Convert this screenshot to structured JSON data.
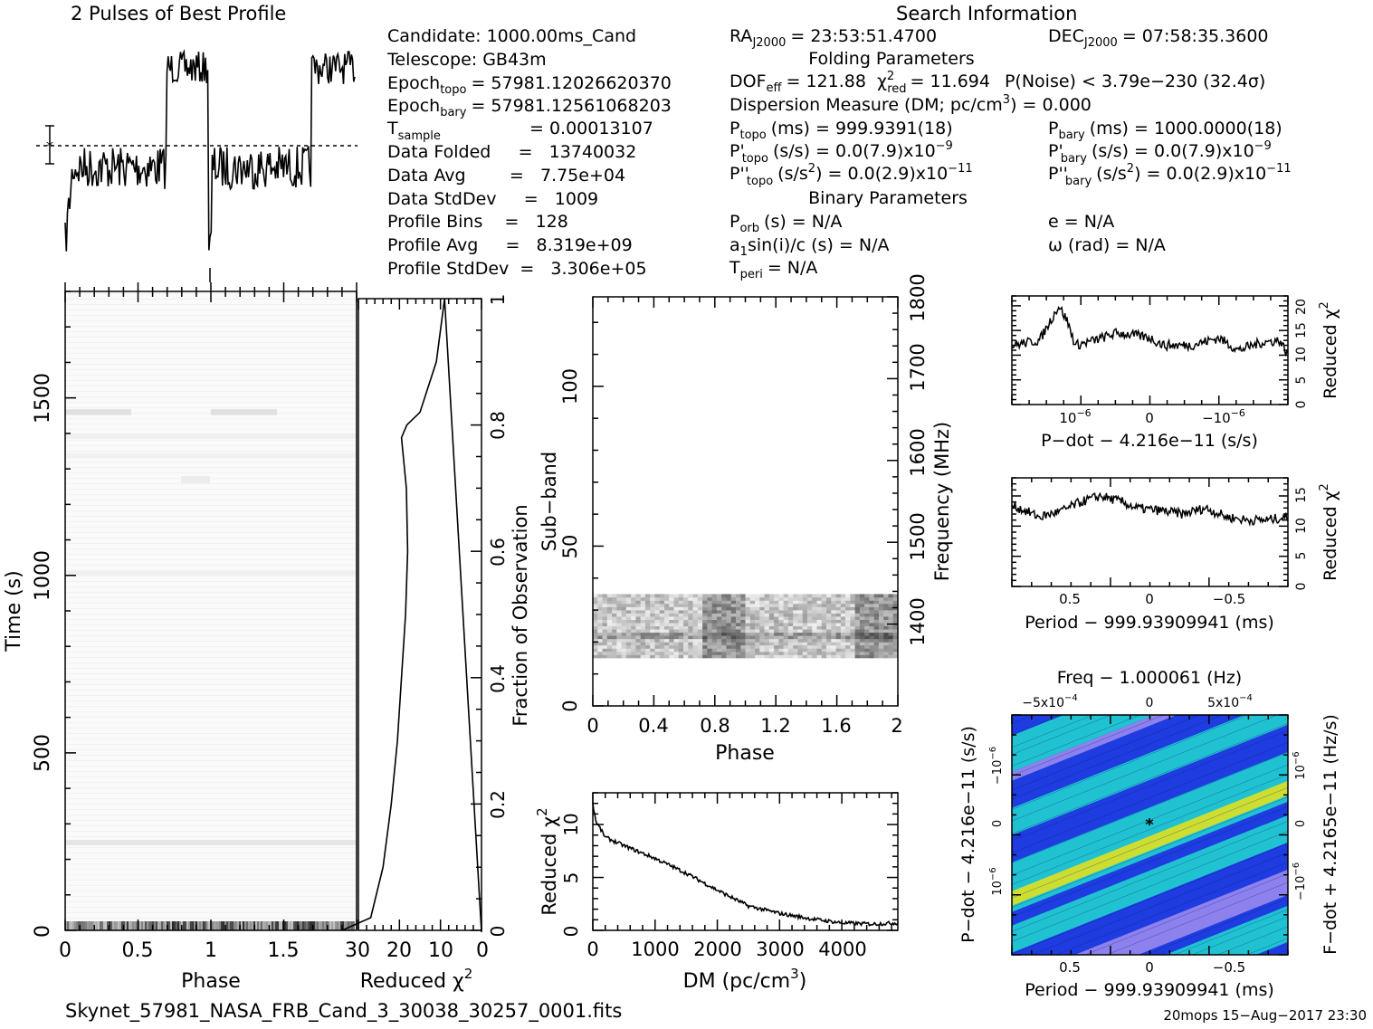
{
  "profile_title": "2 Pulses of Best Profile",
  "search_title": "Search Information",
  "info": {
    "candidate": "Candidate:  1000.00ms_Cand",
    "telescope": "Telescope:  GB43m",
    "epoch_topo_label": "Epoch",
    "epoch_topo_sub": "topo",
    "epoch_topo_value": "= 57981.12026620370",
    "epoch_bary_label": "Epoch",
    "epoch_bary_sub": "bary",
    "epoch_bary_value": "= 57981.12561068203",
    "tsample_label": "T",
    "tsample_sub": "sample",
    "tsample_value": "=   0.00013107",
    "data_folded": "Data Folded     =   13740032",
    "data_avg": "Data Avg        =   7.75e+04",
    "data_stddev": "Data StdDev     =   1009",
    "profile_bins": "Profile Bins    =   128",
    "profile_avg": "Profile Avg     =   8.319e+09",
    "profile_stddev": "Profile StdDev  =   3.306e+05"
  },
  "search": {
    "ra_label": "RA",
    "ra_sub": "J2000",
    "ra_value": "= 23:53:51.4700",
    "dec_label": "DEC",
    "dec_sub": "J2000",
    "dec_value": "= 07:58:35.3600",
    "folding_params": "Folding Parameters",
    "dof_label": "DOF",
    "dof_sub": "eff",
    "dof_value": "= 121.88",
    "chi_label": "χ",
    "chi_sup": "2",
    "chi_sub": "red",
    "chi_value": "= 11.694",
    "pnoise": "P(Noise) < 3.79e−230  (32.4σ)",
    "dm_line": "Dispersion Measure (DM; pc/cm",
    "dm_sup": "3",
    "dm_value": ") = 0.000",
    "ptopo_label": "P",
    "ptopo_sub": "topo",
    "ptopo_value": "(ms) =  999.9391(18)",
    "pbary_label": "P",
    "pbary_sub": "bary",
    "pbary_value": "(ms) =  1000.0000(18)",
    "pdtopo_label": "P'",
    "pdtopo_sub": "topo",
    "pdtopo_value": "(s/s) = 0.0(7.9)x10",
    "pdtopo_exp": "−9",
    "pdbary_label": "P'",
    "pdbary_sub": "bary",
    "pdbary_value": "(s/s) = 0.0(7.9)x10",
    "pdbary_exp": "−9",
    "pddtopo_label": "P''",
    "pddtopo_sub": "topo",
    "pddtopo_value": "(s/s",
    "pddtopo_sup2": "2",
    "pddtopo_tail": ") = 0.0(2.9)x10",
    "pddtopo_exp": "−11",
    "pddbary_label": "P''",
    "pddbary_sub": "bary",
    "pddbary_value": "(s/s",
    "pddbary_sup2": "2",
    "pddbary_tail": ") = 0.0(2.9)x10",
    "pddbary_exp": "−11",
    "binary_params": "Binary Parameters",
    "porb_label": "P",
    "porb_sub": "orb",
    "porb_value": "(s) = N/A",
    "e_value": "e = N/A",
    "a1_label": "a",
    "a1_sub": "1",
    "a1_value": "sin(i)/c (s) = N/A",
    "omega_value": "ω (rad) = N/A",
    "tperi_label": "T",
    "tperi_sub": "peri",
    "tperi_value": "= N/A"
  },
  "footer": {
    "filename": "Skynet_57981_NASA_FRB_Cand_3_30038_30257_0001.fits",
    "stamp": "20mops 15−Aug−2017 23:30"
  },
  "chart_data": [
    {
      "type": "line",
      "title": "2 Pulses of Best Profile",
      "x_range": [
        0,
        2
      ],
      "profile_levels": [
        {
          "phase_start": 0.0,
          "phase_end": 0.7,
          "level": "low"
        },
        {
          "phase_start": 0.7,
          "phase_end": 1.0,
          "level": "high"
        },
        {
          "phase_start": 1.0,
          "phase_end": 1.7,
          "level": "low"
        },
        {
          "phase_start": 1.7,
          "phase_end": 2.0,
          "level": "high"
        }
      ]
    },
    {
      "type": "heatmap",
      "name": "time-phase",
      "xlabel": "Phase",
      "ylabel": "Time (s)",
      "x_ticks": [
        "0",
        "0.5",
        "1",
        "1.5",
        "2"
      ],
      "y_ticks": [
        "0",
        "500",
        "1000",
        "1500"
      ],
      "xlim": [
        0,
        2
      ],
      "ylim": [
        0,
        1800
      ]
    },
    {
      "type": "line",
      "name": "chi2-vs-time",
      "xlabel": "Reduced χ",
      "xlabel_sup": "2",
      "x_ticks": [
        "30",
        "20",
        "10",
        "0"
      ],
      "xlim": [
        30,
        0
      ],
      "y2label": "Fraction of Observation",
      "y_ticks": [
        "0",
        "0.2",
        "0.4",
        "0.6",
        "0.8",
        "1"
      ],
      "points": [
        [
          34,
          0.0
        ],
        [
          27,
          0.02
        ],
        [
          24,
          0.1
        ],
        [
          22,
          0.2
        ],
        [
          20.5,
          0.3
        ],
        [
          19.5,
          0.4
        ],
        [
          18.5,
          0.5
        ],
        [
          18,
          0.6
        ],
        [
          18.3,
          0.7
        ],
        [
          19.5,
          0.78
        ],
        [
          18.2,
          0.8
        ],
        [
          15,
          0.82
        ],
        [
          11,
          0.9
        ],
        [
          9,
          1.0
        ]
      ]
    },
    {
      "type": "heatmap",
      "name": "subband-phase",
      "xlabel": "Phase",
      "ylabel": "Sub−band",
      "y2label": "Frequency (MHz)",
      "x_ticks": [
        "0",
        "0.4",
        "0.8",
        "1.2",
        "1.6",
        "2"
      ],
      "y_ticks": [
        "0",
        "50",
        "100"
      ],
      "y2_ticks": [
        "1400",
        "1500",
        "1600",
        "1700",
        "1800"
      ],
      "xlim": [
        0,
        2
      ],
      "ylim": [
        0,
        128
      ],
      "active_subbands": [
        15,
        35
      ]
    },
    {
      "type": "line",
      "name": "chi2-vs-dm",
      "xlabel": "DM (pc/cm",
      "xlabel_sup": "3",
      "ylabel": "Reduced χ",
      "ylabel_sup": "2",
      "x_ticks": [
        "0",
        "1000",
        "2000",
        "3000",
        "4000"
      ],
      "y_ticks": [
        "0",
        "5",
        "10"
      ],
      "xlim": [
        0,
        4900
      ],
      "ylim": [
        0,
        13
      ],
      "points": [
        [
          0,
          12
        ],
        [
          50,
          10.3
        ],
        [
          200,
          8.8
        ],
        [
          500,
          8.0
        ],
        [
          1000,
          6.8
        ],
        [
          1500,
          5.4
        ],
        [
          2000,
          3.8
        ],
        [
          2500,
          2.3
        ],
        [
          3000,
          1.6
        ],
        [
          3500,
          1.1
        ],
        [
          4000,
          0.7
        ],
        [
          4500,
          0.6
        ],
        [
          4900,
          0.7
        ]
      ]
    },
    {
      "type": "line",
      "name": "chi2-vs-pdot",
      "xlabel": "P−dot − 4.216e−11 (s/s)",
      "y2label": "Reduced χ",
      "y2label_sup": "2",
      "x_ticks": [
        "10",
        "0",
        "−10"
      ],
      "x_tick_exp": "−6",
      "y_ticks": [
        "0",
        "5",
        "10",
        "15",
        "20"
      ],
      "ylim": [
        0,
        22
      ],
      "points": [
        [
          0,
          12
        ],
        [
          0.05,
          12.5
        ],
        [
          0.1,
          13
        ],
        [
          0.14,
          17
        ],
        [
          0.17,
          20
        ],
        [
          0.2,
          17
        ],
        [
          0.23,
          12
        ],
        [
          0.3,
          13
        ],
        [
          0.38,
          14.5
        ],
        [
          0.45,
          14
        ],
        [
          0.5,
          13.5
        ],
        [
          0.55,
          12
        ],
        [
          0.65,
          12
        ],
        [
          0.75,
          13.5
        ],
        [
          0.82,
          11
        ],
        [
          0.9,
          12.5
        ],
        [
          0.97,
          13
        ],
        [
          1.0,
          10
        ]
      ]
    },
    {
      "type": "line",
      "name": "chi2-vs-period",
      "xlabel": "Period − 999.93909941 (ms)",
      "y2label": "Reduced χ",
      "y2label_sup": "2",
      "x_ticks": [
        "0.5",
        "0",
        "−0.5"
      ],
      "y_ticks": [
        "0",
        "5",
        "10",
        "15"
      ],
      "ylim": [
        0,
        18
      ],
      "points": [
        [
          0,
          13.5
        ],
        [
          0.05,
          12.5
        ],
        [
          0.1,
          11.5
        ],
        [
          0.18,
          12.5
        ],
        [
          0.25,
          14
        ],
        [
          0.32,
          15
        ],
        [
          0.4,
          14
        ],
        [
          0.45,
          13
        ],
        [
          0.55,
          12.5
        ],
        [
          0.62,
          12
        ],
        [
          0.7,
          13
        ],
        [
          0.78,
          11.5
        ],
        [
          0.85,
          11
        ],
        [
          0.92,
          11
        ],
        [
          1.0,
          11.5
        ]
      ]
    },
    {
      "type": "heatmap",
      "name": "period-pdot",
      "title": "Freq − 1.000061 (Hz)",
      "xlabel": "Period − 999.93909941 (ms)",
      "ylabel": "P−dot − 4.216e−11 (s/s)",
      "y2label": "F−dot + 4.2165e−11 (Hz/s)",
      "x_ticks": [
        "0.5",
        "0",
        "−0.5"
      ],
      "top_ticks": [
        "−5x10",
        "0",
        "5x10"
      ],
      "top_tick_exp": "−4",
      "y_ticks": [
        "−10",
        "0",
        "10"
      ],
      "y_tick_exp": "−6",
      "y2_ticks": [
        "10",
        "0",
        "−10"
      ],
      "y2_tick_exp": "−6"
    }
  ],
  "colors": {
    "contour_low": "#9988ee",
    "contour_mid": "#2040e0",
    "contour_high": "#20d0d0",
    "contour_peak": "#e0e020"
  }
}
